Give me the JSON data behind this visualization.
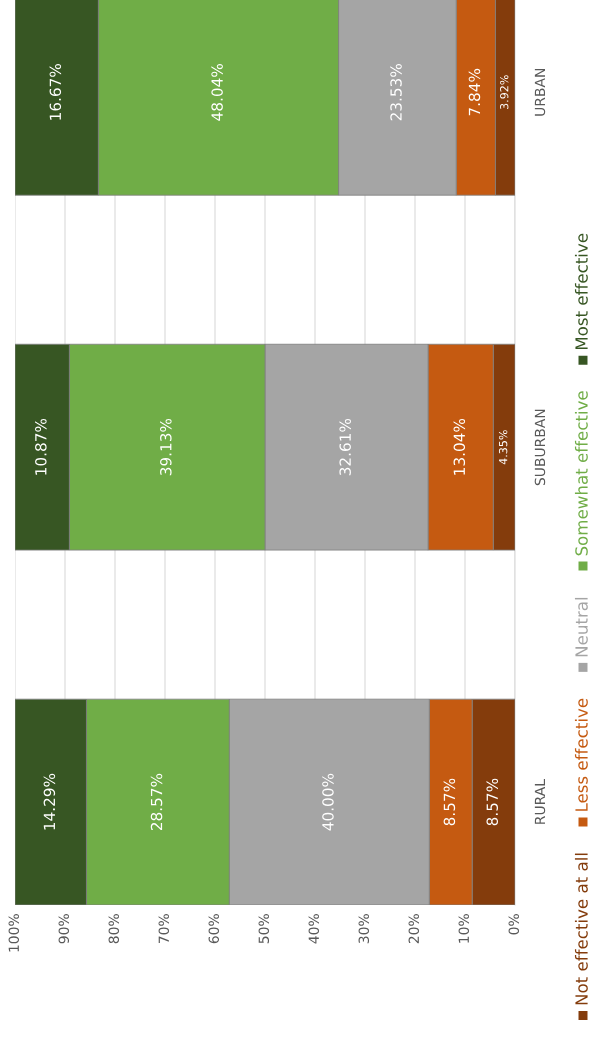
{
  "chart_data": {
    "type": "bar",
    "orientation": "horizontal",
    "stacked": true,
    "categories": [
      "URBAN",
      "SUBURBAN",
      "RURAL"
    ],
    "series": [
      {
        "name": "Not effective at all",
        "color": "#843c0c",
        "values": [
          3.92,
          4.35,
          8.57
        ],
        "value_labels": [
          "3.92%",
          "4.35%",
          "8.57%"
        ]
      },
      {
        "name": "Less effective",
        "color": "#c55a11",
        "values": [
          7.84,
          13.04,
          8.57
        ],
        "value_labels": [
          "7.84%",
          "13.04%",
          "8.57%"
        ]
      },
      {
        "name": "Neutral",
        "color": "#a5a5a5",
        "values": [
          23.53,
          32.61,
          40.0
        ],
        "value_labels": [
          "23.53%",
          "32.61%",
          "40.00%"
        ]
      },
      {
        "name": "Somewhat effective",
        "color": "#70ad47",
        "values": [
          48.04,
          39.13,
          28.57
        ],
        "value_labels": [
          "48.04%",
          "39.13%",
          "28.57%"
        ]
      },
      {
        "name": "Most effective",
        "color": "#375623",
        "values": [
          16.67,
          10.87,
          14.29
        ],
        "value_labels": [
          "16.67%",
          "10.87%",
          "14.29%"
        ]
      }
    ],
    "xlim": [
      100,
      0
    ],
    "xticks": [
      {
        "value": 0,
        "label": "0%"
      },
      {
        "value": 10,
        "label": "10%"
      },
      {
        "value": 20,
        "label": "20%"
      },
      {
        "value": 30,
        "label": "30%"
      },
      {
        "value": 40,
        "label": "40%"
      },
      {
        "value": 50,
        "label": "50%"
      },
      {
        "value": 60,
        "label": "60%"
      },
      {
        "value": 70,
        "label": "70%"
      },
      {
        "value": 80,
        "label": "80%"
      },
      {
        "value": 90,
        "label": "90%"
      },
      {
        "value": 100,
        "label": "100%"
      }
    ],
    "grid": "x",
    "legend": "right"
  }
}
